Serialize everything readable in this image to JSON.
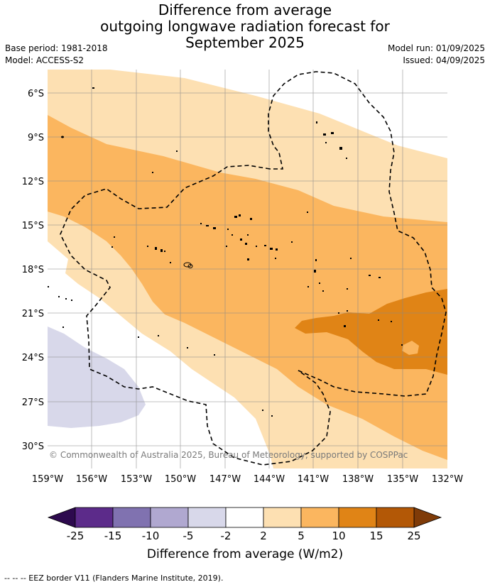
{
  "title": {
    "line1": "Difference from average",
    "line2": "outgoing longwave radiation forecast for",
    "line3": "September 2025"
  },
  "meta": {
    "base_period": "Base period: 1981-2018",
    "model": "Model: ACCESS-S2",
    "model_run": "Model run: 01/09/2025",
    "issued": "Issued: 04/09/2025"
  },
  "map": {
    "lat_labels": [
      "6°S",
      "9°S",
      "12°S",
      "15°S",
      "18°S",
      "21°S",
      "24°S",
      "27°S",
      "30°S"
    ],
    "lon_labels": [
      "159°W",
      "156°W",
      "153°W",
      "150°W",
      "147°W",
      "144°W",
      "141°W",
      "138°W",
      "135°W",
      "132°W"
    ],
    "copyright": "© Commonwealth of Australia 2025, Bureau of Meteorology, supported by COSPPac"
  },
  "colorbar": {
    "ticks": [
      "-25",
      "-15",
      "-10",
      "-5",
      "-2",
      "2",
      "5",
      "10",
      "15",
      "25"
    ],
    "colors": [
      "#5c2b8a",
      "#8072b0",
      "#b0a8d0",
      "#d8d8ea",
      "#ffffff",
      "#fde0b2",
      "#fbb65f",
      "#e08416",
      "#b35806"
    ],
    "under_color": "#2d0a4e",
    "over_color": "#7f3b08",
    "label": "Difference from average (W/m2)"
  },
  "footnote": "--  --  -- EEZ border V11 (Flanders Marine Institute, 2019)."
}
